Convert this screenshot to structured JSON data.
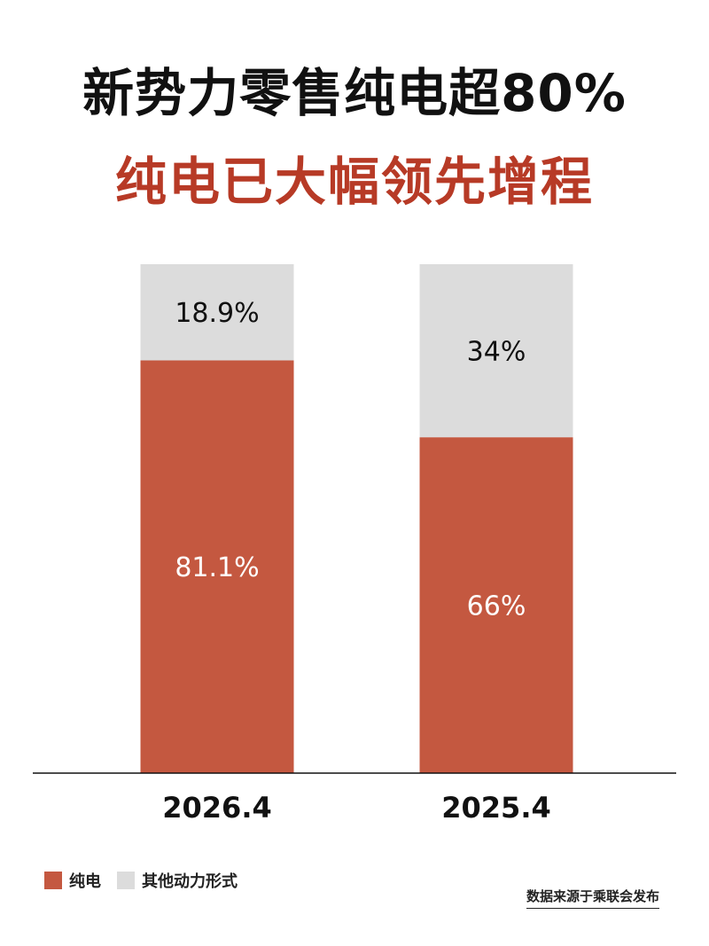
{
  "header": {
    "title": "新势力零售纯电超80%",
    "subtitle": "纯电已大幅领先增程"
  },
  "colors": {
    "ev": "#c45840",
    "other": "#dcdcdc",
    "subtitle": "#b73a26"
  },
  "chart_data": {
    "type": "bar",
    "stacked": true,
    "categories": [
      "2026.4",
      "2025.4"
    ],
    "series": [
      {
        "name": "纯电",
        "values": [
          81.1,
          66
        ],
        "labels": [
          "81.1%",
          "66%"
        ]
      },
      {
        "name": "其他动力形式",
        "values": [
          18.9,
          34
        ],
        "labels": [
          "18.9%",
          "34%"
        ]
      }
    ],
    "ylim": [
      0,
      100
    ],
    "grid": false,
    "legend_position": "bottom-left"
  },
  "legend": {
    "items": [
      "纯电",
      "其他动力形式"
    ]
  },
  "footer": {
    "source": "数据来源于乘联会发布"
  }
}
